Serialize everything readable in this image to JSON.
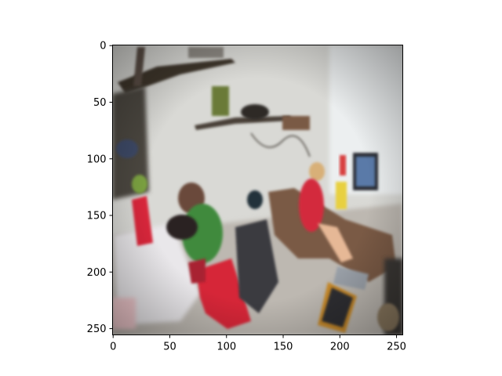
{
  "chart_data": {
    "type": "image",
    "image_height": 256,
    "image_width": 256,
    "x_ticks": [
      {
        "value": 0,
        "label": "0"
      },
      {
        "value": 50,
        "label": "50"
      },
      {
        "value": 100,
        "label": "100"
      },
      {
        "value": 150,
        "label": "150"
      },
      {
        "value": 200,
        "label": "200"
      },
      {
        "value": 250,
        "label": "250"
      }
    ],
    "y_ticks": [
      {
        "value": 0,
        "label": "0"
      },
      {
        "value": 50,
        "label": "50"
      },
      {
        "value": 100,
        "label": "100"
      },
      {
        "value": 150,
        "label": "150"
      },
      {
        "value": 200,
        "label": "200"
      },
      {
        "value": 250,
        "label": "250"
      }
    ],
    "xlim": [
      -0.5,
      255.5
    ],
    "ylim": [
      255.5,
      -0.5
    ],
    "title": "",
    "xlabel": "",
    "ylabel": ""
  },
  "colors": {
    "background": "#ffffff",
    "axis": "#000000",
    "wall": "#dcdcd8",
    "floor": "#b8b4ae",
    "shelf": "#4a4038",
    "red_chair": "#d8283a",
    "green_shirt": "#3f8a3c",
    "dark_chair": "#3a3a40",
    "monitor": "#5a7aa8",
    "skin": "#e6b896",
    "brown_sofa": "#7a5a44",
    "yellow": "#e8d040"
  }
}
